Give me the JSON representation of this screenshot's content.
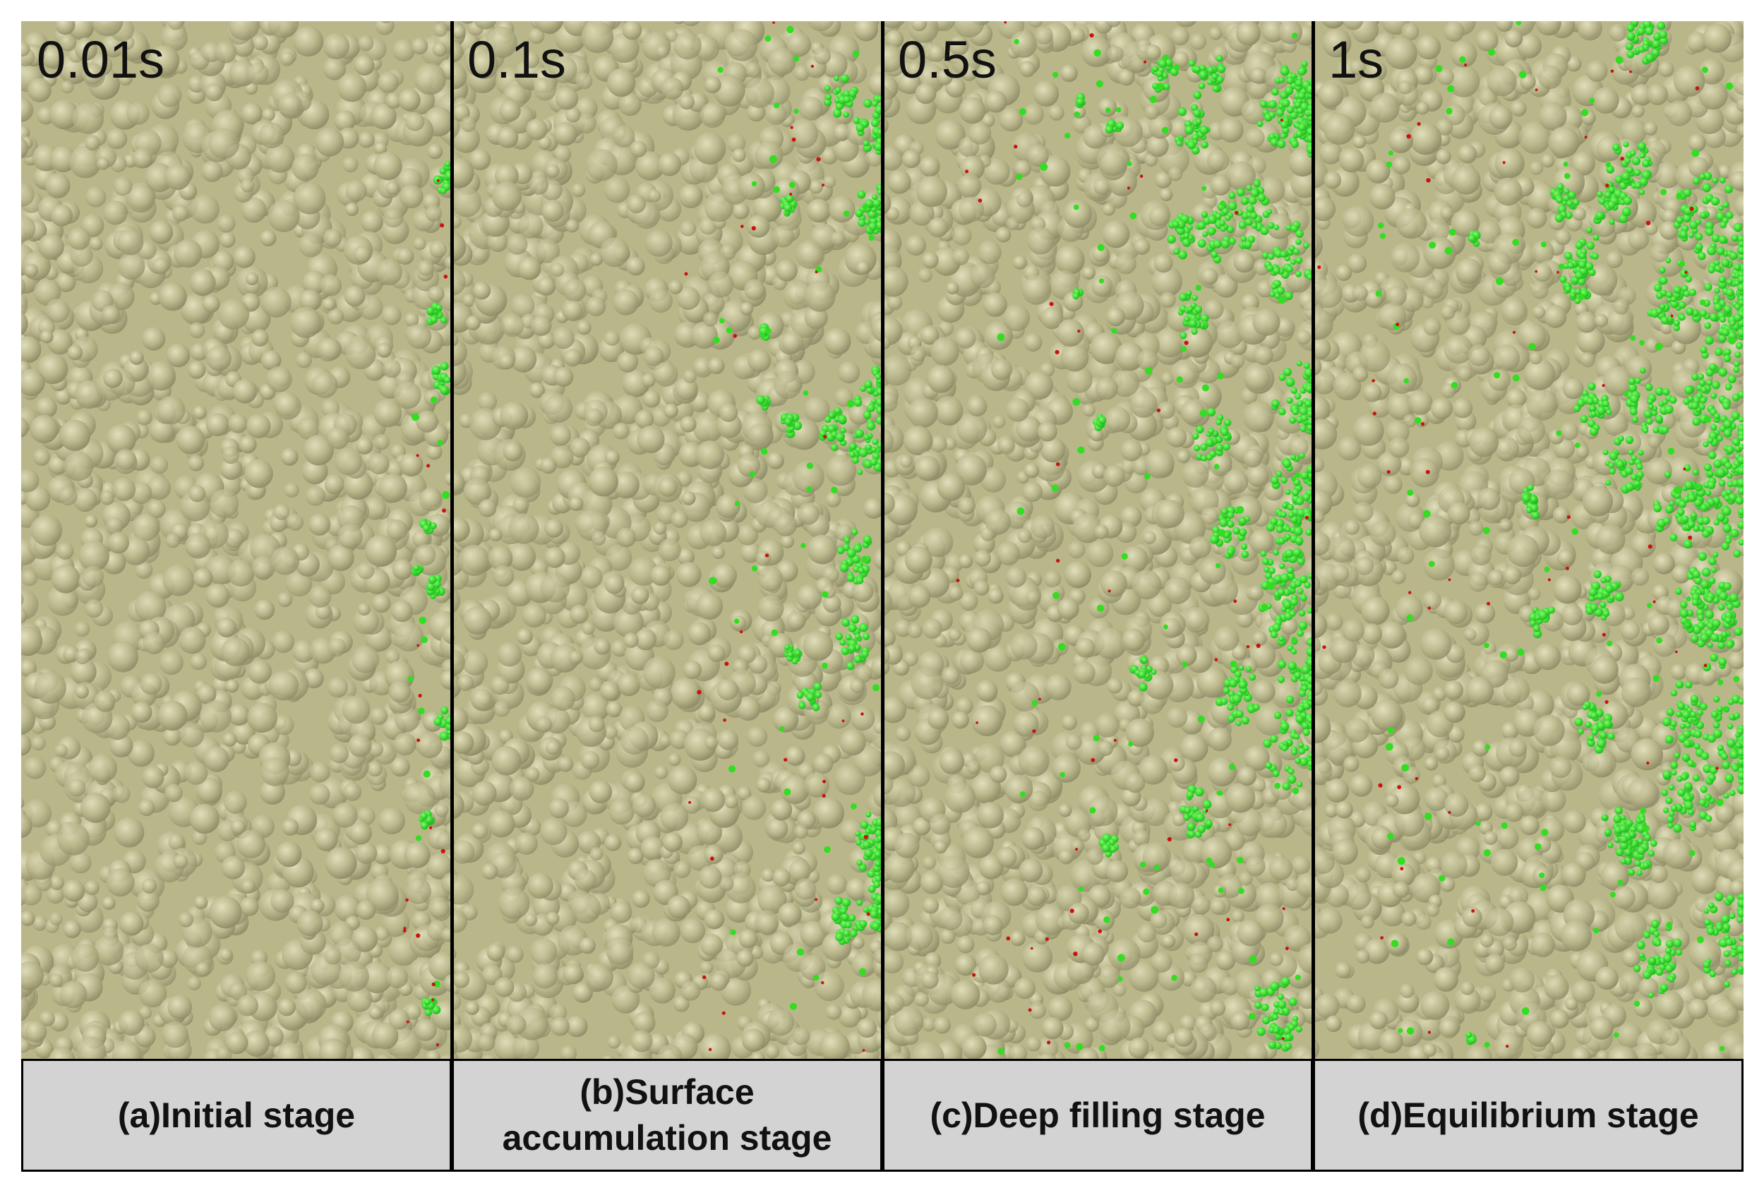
{
  "figure": {
    "colors": {
      "matrix_particles": "#b9b78a",
      "filled_particles": "#33dd22",
      "trace_particles": "#cc1111",
      "caption_background": "#d3d3d3",
      "border": "#000000"
    },
    "panels": [
      {
        "time": "0.01s",
        "caption": "(a)Initial stage",
        "green_extent": 0.07
      },
      {
        "time": "0.1s",
        "caption": "(b)Surface\naccumulation stage",
        "green_extent": 0.3
      },
      {
        "time": "0.5s",
        "caption": "(c)Deep filling stage",
        "green_extent": 0.55
      },
      {
        "time": "1s",
        "caption": "(d)Equilibrium stage",
        "green_extent": 0.65
      }
    ]
  }
}
